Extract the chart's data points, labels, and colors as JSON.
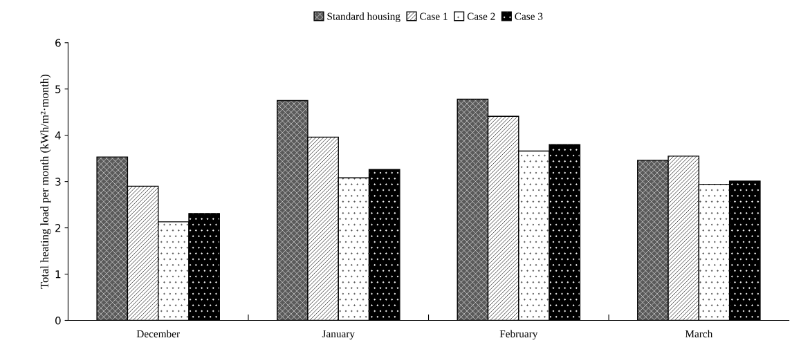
{
  "chart_data": {
    "type": "bar",
    "ylabel": "Total heating load per month (kWh/m²·month)",
    "categories": [
      "December",
      "January",
      "February",
      "March"
    ],
    "series": [
      {
        "name": "Standard housing",
        "color": "#5a5a5a",
        "values": [
          3.53,
          4.75,
          4.78,
          3.46
        ]
      },
      {
        "name": "Case 1",
        "color": "#ffffff",
        "values": [
          2.9,
          3.96,
          4.41,
          3.55
        ]
      },
      {
        "name": "Case 2",
        "color": "#ffffff",
        "values": [
          2.13,
          3.08,
          3.66,
          2.94
        ]
      },
      {
        "name": "Case 3",
        "color": "#000000",
        "values": [
          2.31,
          3.26,
          3.8,
          3.01
        ]
      }
    ],
    "ylim": [
      0,
      6
    ],
    "yticks": [
      0,
      1,
      2,
      3,
      4,
      5,
      6
    ],
    "grid": false,
    "legend": "top"
  }
}
